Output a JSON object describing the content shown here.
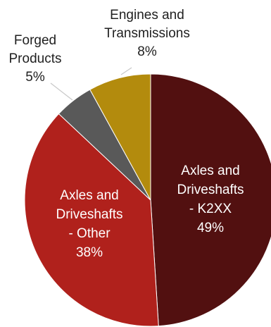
{
  "chart_data": {
    "type": "pie",
    "title": "",
    "slices": [
      {
        "category": "Axles and Driveshafts - K2XX",
        "label_lines": [
          "Axles and",
          "Driveshafts",
          "- K2XX"
        ],
        "value": 49,
        "value_label": "49%",
        "color": "#521010"
      },
      {
        "category": "Axles and Driveshafts - Other",
        "label_lines": [
          "Axles and",
          "Driveshafts",
          "- Other"
        ],
        "value": 38,
        "value_label": "38%",
        "color": "#b0211c"
      },
      {
        "category": "Forged Products",
        "label_lines": [
          "Forged",
          "Products"
        ],
        "value": 5,
        "value_label": "5%",
        "color": "#595959"
      },
      {
        "category": "Engines and Transmissions",
        "label_lines": [
          "Engines and",
          "Transmissions"
        ],
        "value": 8,
        "value_label": "8%",
        "color": "#b38b0d"
      }
    ],
    "start": "12 o'clock",
    "direction": "clockwise",
    "legend": "none"
  }
}
